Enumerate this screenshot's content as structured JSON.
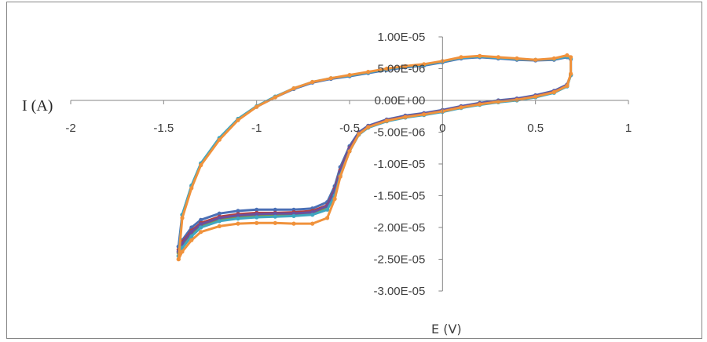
{
  "chart_data": {
    "type": "scatter",
    "title": "",
    "xlabel": "E (V)",
    "ylabel": "I (A)",
    "xlim": [
      -2,
      1
    ],
    "ylim": [
      -3e-05,
      1e-05
    ],
    "x_ticks": [
      {
        "value": -2,
        "label": "-2"
      },
      {
        "value": -1.5,
        "label": "-1.5"
      },
      {
        "value": -1,
        "label": "-1"
      },
      {
        "value": -0.5,
        "label": "-0.5"
      },
      {
        "value": 0,
        "label": "0"
      },
      {
        "value": 0.5,
        "label": "0.5"
      },
      {
        "value": 1,
        "label": "1"
      }
    ],
    "y_ticks": [
      {
        "value": 1e-05,
        "label": "1.00E-05"
      },
      {
        "value": 5e-06,
        "label": "5.00E-06"
      },
      {
        "value": 0,
        "label": "0.00E+00"
      },
      {
        "value": -5e-06,
        "label": "-5.00E-06"
      },
      {
        "value": -1e-05,
        "label": "-1.00E-05"
      },
      {
        "value": -1.5e-05,
        "label": "-1.50E-05"
      },
      {
        "value": -2e-05,
        "label": "-2.00E-05"
      },
      {
        "value": -2.5e-05,
        "label": "-2.50E-05"
      },
      {
        "value": -3e-05,
        "label": "-3.00E-05"
      }
    ],
    "grid": false,
    "legend": "none",
    "series": [
      {
        "color": "#4a6fb5",
        "x": [
          -1.42,
          -1.4,
          -1.35,
          -1.3,
          -1.2,
          -1.1,
          -1.0,
          -0.9,
          -0.8,
          -0.7,
          -0.62,
          -0.58,
          -0.55,
          -0.5,
          -0.45,
          -0.4,
          -0.3,
          -0.2,
          -0.1,
          0.0,
          0.1,
          0.2,
          0.3,
          0.4,
          0.5,
          0.6,
          0.67,
          0.69,
          0.69,
          0.67,
          0.6,
          0.5,
          0.4,
          0.3,
          0.2,
          0.1,
          0.0,
          -0.1,
          -0.2,
          -0.3,
          -0.4,
          -0.5,
          -0.6,
          -0.7,
          -0.8,
          -0.9,
          -1.0,
          -1.1,
          -1.2,
          -1.3,
          -1.35,
          -1.4,
          -1.42
        ],
        "y": [
          -2.3e-05,
          -2.2e-05,
          -2e-05,
          -1.88e-05,
          -1.78e-05,
          -1.74e-05,
          -1.72e-05,
          -1.72e-05,
          -1.72e-05,
          -1.7e-05,
          -1.6e-05,
          -1.35e-05,
          -1.05e-05,
          -7.2e-06,
          -5e-06,
          -4e-06,
          -3e-06,
          -2.4e-06,
          -2e-06,
          -1.5e-06,
          -9e-07,
          -4e-07,
          0.0,
          3e-07,
          8e-07,
          1.5e-06,
          2.5e-06,
          4e-06,
          6.5e-06,
          6.8e-06,
          6.4e-06,
          6.3e-06,
          6.4e-06,
          6.6e-06,
          6.8e-06,
          6.6e-06,
          6e-06,
          5.5e-06,
          5.2e-06,
          4.8e-06,
          4.3e-06,
          3.8e-06,
          3.4e-06,
          2.8e-06,
          1.8e-06,
          5e-07,
          -1e-06,
          -3e-06,
          -6e-06,
          -1e-05,
          -1.35e-05,
          -1.8e-05,
          -2.3e-05
        ]
      },
      {
        "color": "#b5403f",
        "x": [
          -1.42,
          -1.4,
          -1.35,
          -1.3,
          -1.2,
          -1.1,
          -1.0,
          -0.9,
          -0.8,
          -0.7,
          -0.62,
          -0.58,
          -0.55,
          -0.5,
          -0.45,
          -0.4,
          -0.3,
          -0.2,
          -0.1,
          0.0,
          0.1,
          0.2,
          0.3,
          0.4,
          0.5,
          0.6,
          0.67,
          0.69
        ],
        "y": [
          -2.35e-05,
          -2.23e-05,
          -2.05e-05,
          -1.93e-05,
          -1.83e-05,
          -1.79e-05,
          -1.77e-05,
          -1.77e-05,
          -1.76e-05,
          -1.74e-05,
          -1.65e-05,
          -1.4e-05,
          -1.1e-05,
          -7.5e-06,
          -5.2e-06,
          -4.1e-06,
          -3.1e-06,
          -2.5e-06,
          -2.1e-06,
          -1.6e-06,
          -1e-06,
          -5e-07,
          -1e-07,
          2e-07,
          7e-07,
          1.4e-06,
          2.4e-06,
          4e-06
        ]
      },
      {
        "color": "#7f9d40",
        "x": [
          -1.42,
          -1.4,
          -1.35,
          -1.3,
          -1.2,
          -1.1,
          -1.0,
          -0.9,
          -0.8,
          -0.7,
          -0.62,
          -0.58,
          -0.55,
          -0.5,
          -0.45,
          -0.4,
          -0.3,
          -0.2,
          -0.1,
          0.0,
          0.1,
          0.2,
          0.3,
          0.4,
          0.5,
          0.6,
          0.67,
          0.69
        ],
        "y": [
          -2.4e-05,
          -2.27e-05,
          -2.1e-05,
          -1.97e-05,
          -1.87e-05,
          -1.83e-05,
          -1.81e-05,
          -1.8e-05,
          -1.79e-05,
          -1.77e-05,
          -1.68e-05,
          -1.44e-05,
          -1.13e-05,
          -7.7e-06,
          -5.3e-06,
          -4.2e-06,
          -3.2e-06,
          -2.6e-06,
          -2.2e-06,
          -1.7e-06,
          -1.1e-06,
          -6e-07,
          -2e-07,
          1e-07,
          6e-07,
          1.3e-06,
          2.3e-06,
          4e-06
        ]
      },
      {
        "color": "#6b4f9e",
        "x": [
          -1.42,
          -1.4,
          -1.35,
          -1.3,
          -1.2,
          -1.1,
          -1.0,
          -0.9,
          -0.8,
          -0.7,
          -0.62,
          -0.58,
          -0.55,
          -0.5,
          -0.45,
          -0.4,
          -0.3,
          -0.2,
          -0.1,
          0.0,
          0.1,
          0.2,
          0.3,
          0.4,
          0.5,
          0.6,
          0.67,
          0.69
        ],
        "y": [
          -2.38e-05,
          -2.25e-05,
          -2.07e-05,
          -1.95e-05,
          -1.85e-05,
          -1.81e-05,
          -1.79e-05,
          -1.78e-05,
          -1.78e-05,
          -1.76e-05,
          -1.66e-05,
          -1.42e-05,
          -1.12e-05,
          -7.6e-06,
          -5.2e-06,
          -4.1e-06,
          -3.1e-06,
          -2.5e-06,
          -2.1e-06,
          -1.6e-06,
          -1e-06,
          -5e-07,
          -1e-07,
          2e-07,
          7e-07,
          1.4e-06,
          2.4e-06,
          4e-06
        ]
      },
      {
        "color": "#3fa6c0",
        "x": [
          -1.42,
          -1.4,
          -1.35,
          -1.3,
          -1.2,
          -1.1,
          -1.0,
          -0.9,
          -0.8,
          -0.7,
          -0.62,
          -0.58,
          -0.55,
          -0.5,
          -0.45,
          -0.4,
          -0.3,
          -0.2,
          -0.1,
          0.0,
          0.1,
          0.2,
          0.3,
          0.4,
          0.5,
          0.6,
          0.67,
          0.69,
          0.69,
          0.67,
          0.6,
          0.5,
          0.4,
          0.3,
          0.2,
          0.1,
          0.0,
          -0.1,
          -0.2,
          -0.3,
          -0.4,
          -0.5,
          -0.6,
          -0.7,
          -0.8,
          -0.9,
          -1.0,
          -1.1,
          -1.2,
          -1.3,
          -1.35,
          -1.4,
          -1.42
        ],
        "y": [
          -2.45e-05,
          -2.32e-05,
          -2.14e-05,
          -2e-05,
          -1.9e-05,
          -1.86e-05,
          -1.84e-05,
          -1.83e-05,
          -1.82e-05,
          -1.8e-05,
          -1.72e-05,
          -1.5e-05,
          -1.18e-05,
          -8e-06,
          -5.4e-06,
          -4.3e-06,
          -3.3e-06,
          -2.7e-06,
          -2.3e-06,
          -1.8e-06,
          -1.2e-06,
          -7e-07,
          -3e-07,
          0.0,
          5e-07,
          1.2e-06,
          2.2e-06,
          4e-06,
          6.6e-06,
          6.9e-06,
          6.5e-06,
          6.4e-06,
          6.5e-06,
          6.7e-06,
          6.9e-06,
          6.7e-06,
          6.1e-06,
          5.6e-06,
          5.3e-06,
          4.9e-06,
          4.4e-06,
          3.9e-06,
          3.5e-06,
          2.9e-06,
          1.9e-06,
          6e-07,
          -9e-07,
          -2.9e-06,
          -5.9e-06,
          -9.9e-06,
          -1.34e-05,
          -1.8e-05,
          -2.45e-05
        ]
      },
      {
        "color": "#f0923c",
        "x": [
          -1.42,
          -1.4,
          -1.35,
          -1.3,
          -1.2,
          -1.1,
          -1.0,
          -0.9,
          -0.8,
          -0.7,
          -0.62,
          -0.58,
          -0.55,
          -0.5,
          -0.45,
          -0.4,
          -0.3,
          -0.2,
          -0.1,
          0.0,
          0.1,
          0.2,
          0.3,
          0.4,
          0.5,
          0.6,
          0.67,
          0.69,
          0.69,
          0.67,
          0.6,
          0.5,
          0.4,
          0.3,
          0.2,
          0.1,
          0.0,
          -0.1,
          -0.2,
          -0.3,
          -0.4,
          -0.5,
          -0.6,
          -0.7,
          -0.8,
          -0.9,
          -1.0,
          -1.1,
          -1.2,
          -1.3,
          -1.35,
          -1.4,
          -1.42
        ],
        "y": [
          -2.5e-05,
          -2.38e-05,
          -2.2e-05,
          -2.07e-05,
          -1.98e-05,
          -1.94e-05,
          -1.93e-05,
          -1.93e-05,
          -1.94e-05,
          -1.94e-05,
          -1.85e-05,
          -1.55e-05,
          -1.2e-05,
          -8e-06,
          -5.3e-06,
          -4.2e-06,
          -3.2e-06,
          -2.6e-06,
          -2.2e-06,
          -1.7e-06,
          -1.1e-06,
          -6e-07,
          -2e-07,
          1e-07,
          6e-07,
          1.3e-06,
          2.3e-06,
          4.2e-06,
          6.8e-06,
          7.1e-06,
          6.6e-06,
          6.4e-06,
          6.6e-06,
          6.8e-06,
          7e-06,
          6.8e-06,
          6.2e-06,
          5.7e-06,
          5.4e-06,
          5e-06,
          4.5e-06,
          4e-06,
          3.5e-06,
          2.9e-06,
          1.9e-06,
          5e-07,
          -1e-06,
          -3.1e-06,
          -6.2e-06,
          -1.02e-05,
          -1.38e-05,
          -1.85e-05,
          -2.5e-05
        ]
      }
    ]
  }
}
